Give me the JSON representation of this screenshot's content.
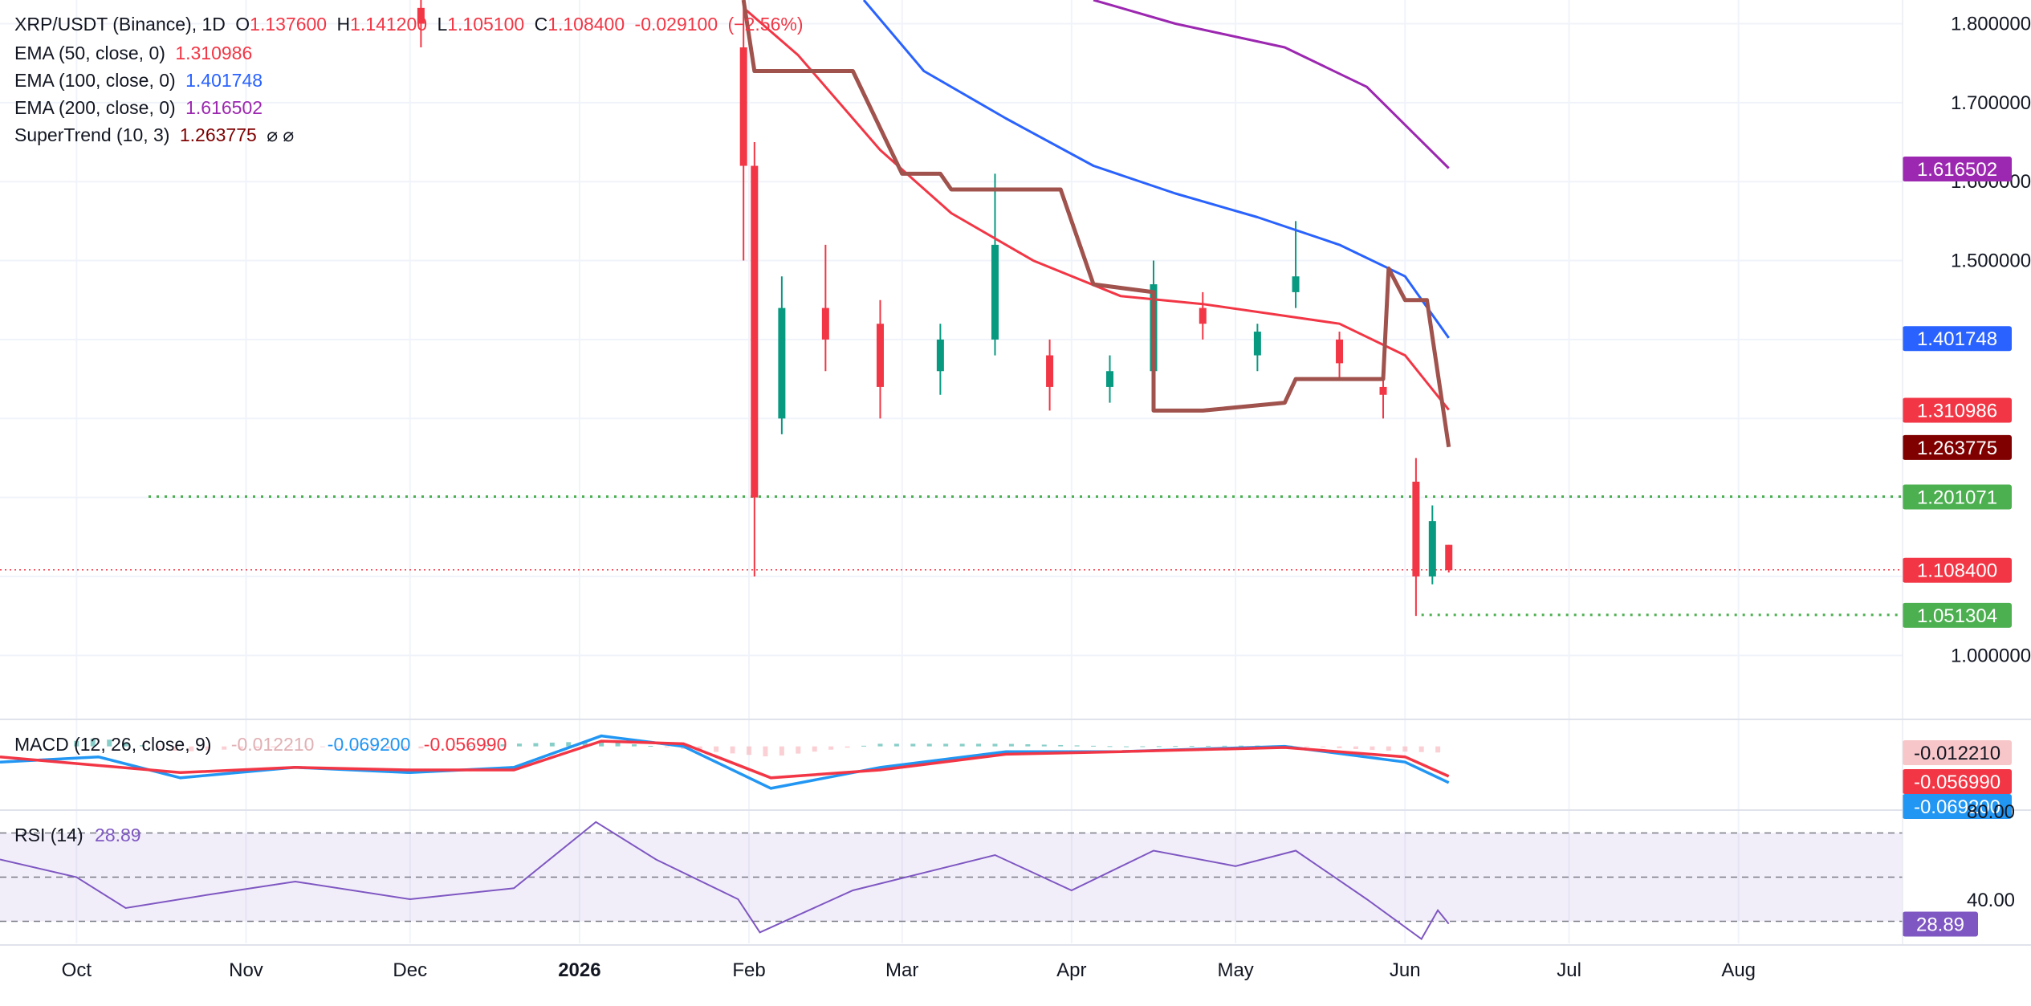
{
  "header": {
    "symbol": "XRP/USDT (Binance), 1D",
    "ohlc": {
      "o_label": "O",
      "o": "1.137600",
      "h_label": "H",
      "h": "1.141200",
      "l_label": "L",
      "l": "1.105100",
      "c_label": "C",
      "c": "1.108400",
      "change": "-0.029100",
      "change_pct": "(−2.56%)"
    }
  },
  "indicators": {
    "ema50": {
      "label": "EMA (50, close, 0)",
      "value": "1.310986",
      "color": "#f23645"
    },
    "ema100": {
      "label": "EMA (100, close, 0)",
      "value": "1.401748",
      "color": "#2962ff"
    },
    "ema200": {
      "label": "EMA (200, close, 0)",
      "value": "1.616502",
      "color": "#9c27b0"
    },
    "supertrend": {
      "label": "SuperTrend (10, 3)",
      "value": "1.263775",
      "color": "#800000",
      "extra": "⌀ ⌀"
    }
  },
  "price_axis": {
    "ticks": [
      "1.800000",
      "1.700000",
      "1.600000",
      "1.500000",
      "1.000000"
    ],
    "tags": [
      {
        "value": "1.616502",
        "color": "#9c27b0"
      },
      {
        "value": "1.401748",
        "color": "#2962ff"
      },
      {
        "value": "1.310986",
        "color": "#f23645"
      },
      {
        "value": "1.263775",
        "color": "#800000"
      },
      {
        "value": "1.201071",
        "color": "#4caf50"
      },
      {
        "value": "1.108400",
        "color": "#f23645"
      },
      {
        "value": "1.051304",
        "color": "#4caf50"
      }
    ]
  },
  "time_axis": {
    "labels": [
      "Oct",
      "Nov",
      "Dec",
      "2026",
      "Feb",
      "Mar",
      "Apr",
      "May",
      "Jun",
      "Jul",
      "Aug"
    ]
  },
  "levels": {
    "resistance": 1.201071,
    "support": 1.051304,
    "last": 1.1084
  },
  "macd": {
    "label": "MACD (12, 26, close, 9)",
    "hist": "-0.012210",
    "macd": "-0.069200",
    "signal": "-0.056990",
    "tags": [
      {
        "value": "-0.012210",
        "color": "#f7c6c9",
        "text_color": "#131722"
      },
      {
        "value": "-0.056990",
        "color": "#f23645",
        "text_color": "#ffffff"
      },
      {
        "value": "-0.069200",
        "color": "#2196f3",
        "text_color": "#ffffff"
      }
    ],
    "colors": {
      "macd": "#2196f3",
      "signal": "#f23645"
    }
  },
  "rsi": {
    "label": "RSI (14)",
    "value": "28.89",
    "color": "#7e57c2",
    "ticks": [
      "80.00",
      "40.00"
    ],
    "upper": 70,
    "lower": 30
  },
  "chart_data": {
    "type": "line",
    "title": "XRP/USDT (Binance), 1D",
    "x_range": [
      "2025-09-17",
      "2026-08-31"
    ],
    "y_range": [
      0.92,
      1.83
    ],
    "candles": [
      {
        "date": "2025-12-03",
        "o": 1.82,
        "h": 1.84,
        "l": 1.77,
        "c": 1.8
      },
      {
        "date": "2026-01-31",
        "o": 1.77,
        "h": 1.83,
        "l": 1.5,
        "c": 1.62
      },
      {
        "date": "2026-02-02",
        "o": 1.62,
        "h": 1.65,
        "l": 1.1,
        "c": 1.2
      },
      {
        "date": "2026-02-07",
        "o": 1.3,
        "h": 1.48,
        "l": 1.28,
        "c": 1.44
      },
      {
        "date": "2026-02-15",
        "o": 1.44,
        "h": 1.52,
        "l": 1.36,
        "c": 1.4
      },
      {
        "date": "2026-02-25",
        "o": 1.42,
        "h": 1.45,
        "l": 1.3,
        "c": 1.34
      },
      {
        "date": "2026-03-08",
        "o": 1.36,
        "h": 1.42,
        "l": 1.33,
        "c": 1.4
      },
      {
        "date": "2026-03-18",
        "o": 1.4,
        "h": 1.61,
        "l": 1.38,
        "c": 1.52
      },
      {
        "date": "2026-03-28",
        "o": 1.38,
        "h": 1.4,
        "l": 1.31,
        "c": 1.34
      },
      {
        "date": "2026-04-08",
        "o": 1.34,
        "h": 1.38,
        "l": 1.32,
        "c": 1.36
      },
      {
        "date": "2026-04-16",
        "o": 1.36,
        "h": 1.5,
        "l": 1.35,
        "c": 1.47
      },
      {
        "date": "2026-04-25",
        "o": 1.44,
        "h": 1.46,
        "l": 1.4,
        "c": 1.42
      },
      {
        "date": "2026-05-05",
        "o": 1.38,
        "h": 1.42,
        "l": 1.36,
        "c": 1.41
      },
      {
        "date": "2026-05-12",
        "o": 1.46,
        "h": 1.55,
        "l": 1.44,
        "c": 1.48
      },
      {
        "date": "2026-05-20",
        "o": 1.4,
        "h": 1.41,
        "l": 1.35,
        "c": 1.37
      },
      {
        "date": "2026-05-28",
        "o": 1.34,
        "h": 1.36,
        "l": 1.3,
        "c": 1.33
      },
      {
        "date": "2026-06-03",
        "o": 1.22,
        "h": 1.25,
        "l": 1.05,
        "c": 1.1
      },
      {
        "date": "2026-06-06",
        "o": 1.1,
        "h": 1.19,
        "l": 1.09,
        "c": 1.17
      },
      {
        "date": "2026-06-09",
        "o": 1.14,
        "h": 1.14,
        "l": 1.105,
        "c": 1.108
      }
    ],
    "series": [
      {
        "name": "EMA (50, close, 0)",
        "points": [
          [
            "2026-01-31",
            1.82
          ],
          [
            "2026-02-10",
            1.76
          ],
          [
            "2026-02-25",
            1.64
          ],
          [
            "2026-03-10",
            1.56
          ],
          [
            "2026-03-25",
            1.5
          ],
          [
            "2026-04-10",
            1.455
          ],
          [
            "2026-04-25",
            1.445
          ],
          [
            "2026-05-10",
            1.43
          ],
          [
            "2026-05-20",
            1.42
          ],
          [
            "2026-06-01",
            1.38
          ],
          [
            "2026-06-09",
            1.311
          ]
        ]
      },
      {
        "name": "EMA (100, close, 0)",
        "points": [
          [
            "2026-02-22",
            1.83
          ],
          [
            "2026-03-05",
            1.74
          ],
          [
            "2026-03-20",
            1.68
          ],
          [
            "2026-04-05",
            1.62
          ],
          [
            "2026-04-20",
            1.585
          ],
          [
            "2026-05-05",
            1.555
          ],
          [
            "2026-05-20",
            1.52
          ],
          [
            "2026-06-01",
            1.48
          ],
          [
            "2026-06-09",
            1.402
          ]
        ]
      },
      {
        "name": "EMA (200, close, 0)",
        "points": [
          [
            "2026-04-05",
            1.83
          ],
          [
            "2026-04-20",
            1.8
          ],
          [
            "2026-05-10",
            1.77
          ],
          [
            "2026-05-25",
            1.72
          ],
          [
            "2026-06-09",
            1.617
          ]
        ]
      },
      {
        "name": "SuperTrend (10, 3)",
        "points": [
          [
            "2026-01-31",
            1.83
          ],
          [
            "2026-02-02",
            1.74
          ],
          [
            "2026-02-20",
            1.74
          ],
          [
            "2026-03-01",
            1.61
          ],
          [
            "2026-03-08",
            1.61
          ],
          [
            "2026-03-10",
            1.59
          ],
          [
            "2026-03-30",
            1.59
          ],
          [
            "2026-04-05",
            1.47
          ],
          [
            "2026-04-16",
            1.46
          ],
          [
            "2026-04-16",
            1.31
          ],
          [
            "2026-04-25",
            1.31
          ],
          [
            "2026-05-10",
            1.32
          ],
          [
            "2026-05-12",
            1.35
          ],
          [
            "2026-05-28",
            1.35
          ],
          [
            "2026-05-29",
            1.49
          ],
          [
            "2026-06-01",
            1.45
          ],
          [
            "2026-06-05",
            1.45
          ],
          [
            "2026-06-09",
            1.264
          ]
        ]
      }
    ],
    "macd_range": [
      -0.12,
      0.05
    ],
    "macd_series": {
      "macd": [
        [
          "2025-09-17",
          -0.03
        ],
        [
          "2025-10-05",
          -0.02
        ],
        [
          "2025-10-20",
          -0.06
        ],
        [
          "2025-11-10",
          -0.04
        ],
        [
          "2025-12-01",
          -0.05
        ],
        [
          "2025-12-20",
          -0.04
        ],
        [
          "2026-01-05",
          0.02
        ],
        [
          "2026-01-20",
          0.0
        ],
        [
          "2026-02-05",
          -0.08
        ],
        [
          "2026-02-25",
          -0.04
        ],
        [
          "2026-03-20",
          -0.01
        ],
        [
          "2026-04-10",
          -0.01
        ],
        [
          "2026-05-10",
          0.0
        ],
        [
          "2026-06-01",
          -0.03
        ],
        [
          "2026-06-09",
          -0.0692
        ]
      ],
      "signal": [
        [
          "2025-09-17",
          -0.02
        ],
        [
          "2025-10-20",
          -0.05
        ],
        [
          "2025-11-10",
          -0.04
        ],
        [
          "2025-12-01",
          -0.045
        ],
        [
          "2025-12-20",
          -0.045
        ],
        [
          "2026-01-05",
          0.01
        ],
        [
          "2026-01-20",
          0.005
        ],
        [
          "2026-02-05",
          -0.06
        ],
        [
          "2026-02-25",
          -0.045
        ],
        [
          "2026-03-20",
          -0.015
        ],
        [
          "2026-04-10",
          -0.01
        ],
        [
          "2026-05-10",
          -0.002
        ],
        [
          "2026-06-01",
          -0.02
        ],
        [
          "2026-06-09",
          -0.05699
        ]
      ]
    },
    "rsi_range": [
      20,
      80
    ],
    "rsi_series": [
      [
        "2025-09-17",
        58
      ],
      [
        "2025-10-01",
        50
      ],
      [
        "2025-10-10",
        36
      ],
      [
        "2025-10-25",
        42
      ],
      [
        "2025-11-10",
        48
      ],
      [
        "2025-12-01",
        40
      ],
      [
        "2025-12-20",
        45
      ],
      [
        "2026-01-04",
        75
      ],
      [
        "2026-01-15",
        58
      ],
      [
        "2026-01-30",
        40
      ],
      [
        "2026-02-03",
        25
      ],
      [
        "2026-02-20",
        44
      ],
      [
        "2026-03-18",
        60
      ],
      [
        "2026-04-01",
        44
      ],
      [
        "2026-04-16",
        62
      ],
      [
        "2026-05-01",
        55
      ],
      [
        "2026-05-12",
        62
      ],
      [
        "2026-05-25",
        40
      ],
      [
        "2026-06-04",
        22
      ],
      [
        "2026-06-07",
        35
      ],
      [
        "2026-06-09",
        28.89
      ]
    ]
  }
}
